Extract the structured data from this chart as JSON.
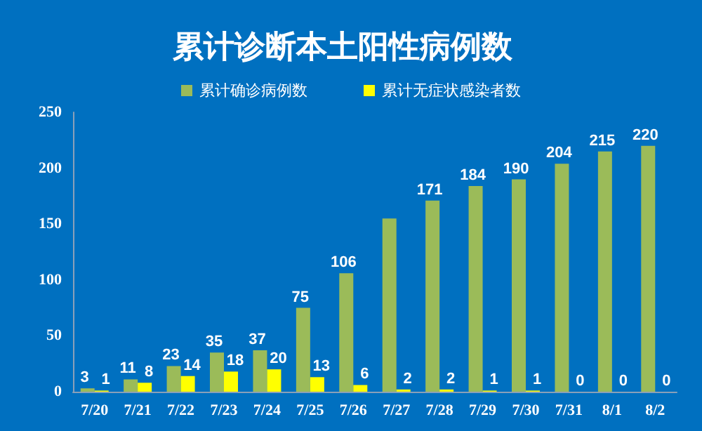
{
  "chart_data": {
    "type": "bar",
    "title": "累计诊断本土阳性病例数",
    "categories": [
      "7/20",
      "7/21",
      "7/22",
      "7/23",
      "7/24",
      "7/25",
      "7/26",
      "7/27",
      "7/28",
      "7/29",
      "7/30",
      "7/31",
      "8/1",
      "8/2"
    ],
    "series": [
      {
        "name": "累计确诊病例数",
        "color": "#9bbb59",
        "values": [
          3,
          11,
          23,
          35,
          37,
          75,
          106,
          155,
          171,
          184,
          190,
          204,
          215,
          220
        ],
        "value_labels": [
          "3",
          "11",
          "23",
          "35",
          "37",
          "75",
          "106",
          null,
          "171",
          "184",
          "190",
          "204",
          "215",
          "220"
        ]
      },
      {
        "name": "累计无症状感染者数",
        "color": "#ffff00",
        "values": [
          1,
          8,
          14,
          18,
          20,
          13,
          6,
          2,
          2,
          1,
          1,
          0,
          0,
          0
        ],
        "value_labels": [
          "1",
          "8",
          "14",
          "18",
          "20",
          "13",
          "6",
          "2",
          "2",
          "1",
          "1",
          "0",
          "0",
          "0"
        ]
      }
    ],
    "ylim": [
      0,
      250
    ],
    "yticks": [
      0,
      50,
      100,
      150,
      200,
      250
    ],
    "grid": false,
    "legend": "top"
  }
}
